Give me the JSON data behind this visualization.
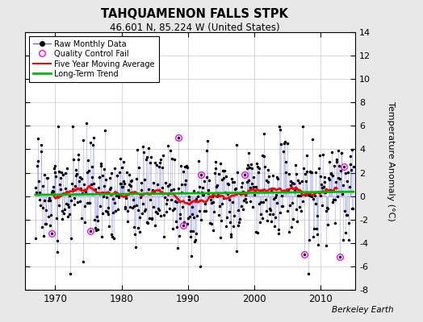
{
  "title": "TAHQUAMENON FALLS STPK",
  "subtitle": "46.601 N, 85.224 W (United States)",
  "ylabel": "Temperature Anomaly (°C)",
  "credit": "Berkeley Earth",
  "ylim": [
    -8,
    14
  ],
  "yticks": [
    -8,
    -6,
    -4,
    -2,
    0,
    2,
    4,
    6,
    8,
    10,
    12,
    14
  ],
  "xticks": [
    1970,
    1980,
    1990,
    2000,
    2010
  ],
  "year_start": 1967,
  "year_end": 2014,
  "bg_color": "#e8e8e8",
  "plot_bg_color": "#ffffff",
  "stem_color": "#6666ff",
  "dot_color": "#000000",
  "ma_color": "#ff0000",
  "trend_color": "#00bb00",
  "qc_color": "#ff00ff",
  "seed": 17
}
